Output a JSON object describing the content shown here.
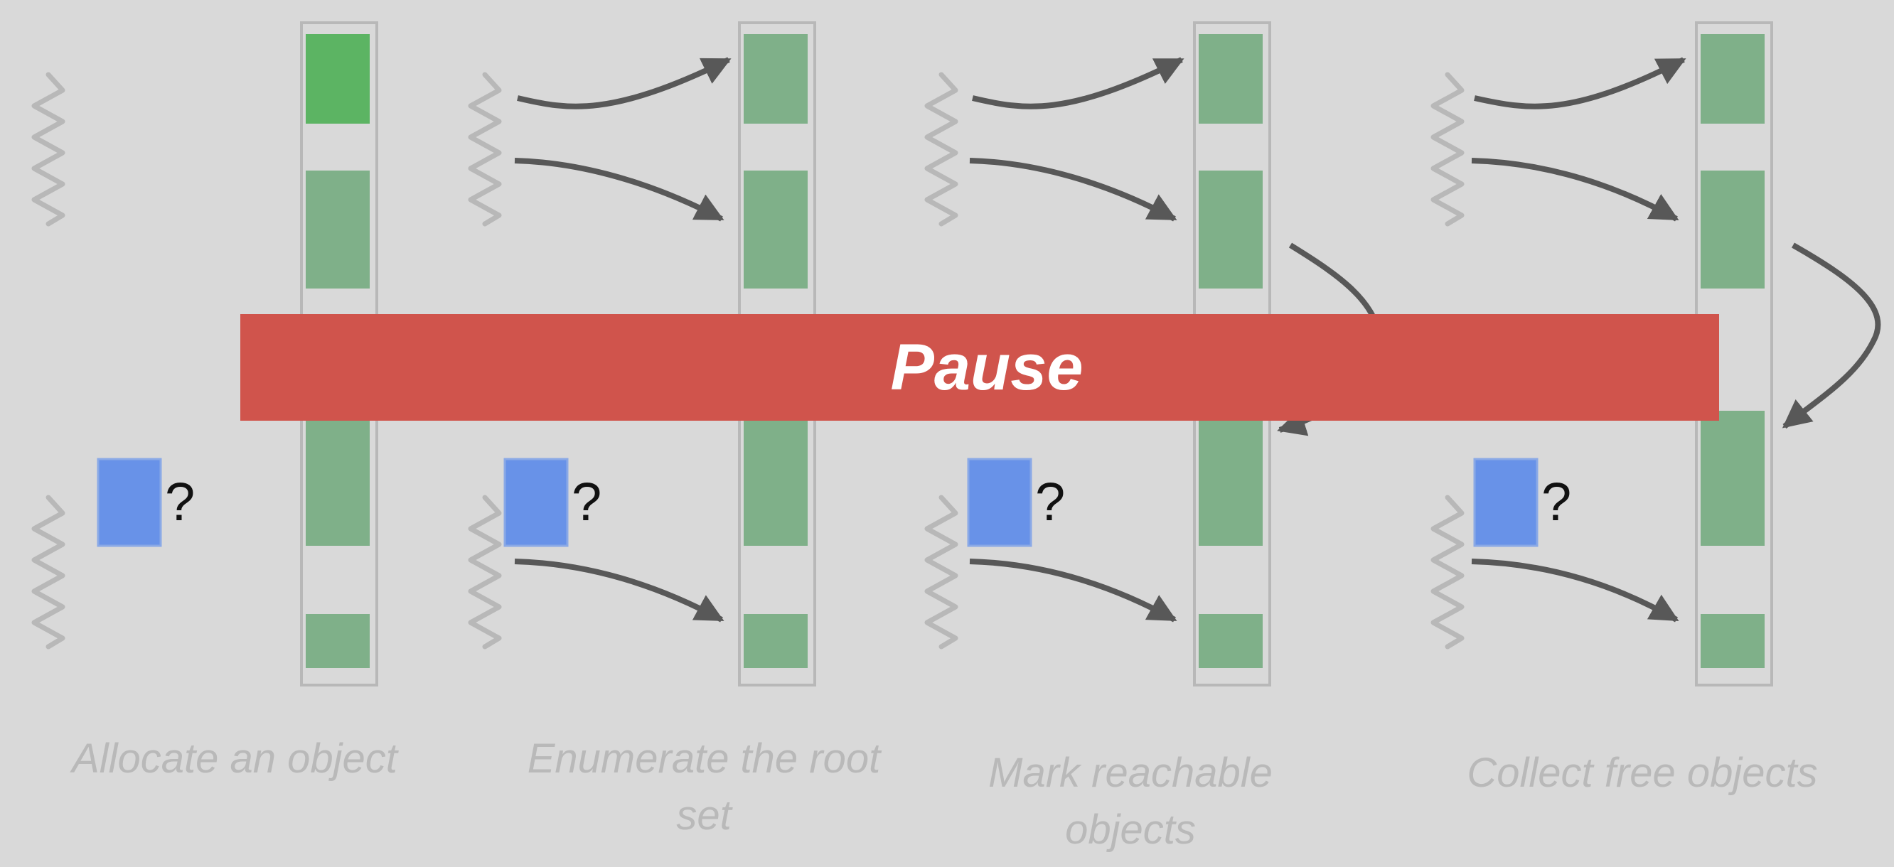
{
  "banner": {
    "label": "Pause"
  },
  "steps": [
    {
      "caption": "Allocate an object"
    },
    {
      "caption": "Enumerate the root set"
    },
    {
      "caption": "Mark reachable objects"
    },
    {
      "caption": "Collect free objects"
    }
  ],
  "new_object_marker": "?",
  "colors": {
    "background": "#d9d9d9",
    "object_active": "#5cb463",
    "object": "#7fb089",
    "new_object": "#6892e8",
    "heap_frame": "#b8b8b8",
    "arrow": "#585858",
    "root_squiggle": "#b8b8b8",
    "pause_banner": "#d0544c",
    "caption": "#b9b9b9"
  }
}
